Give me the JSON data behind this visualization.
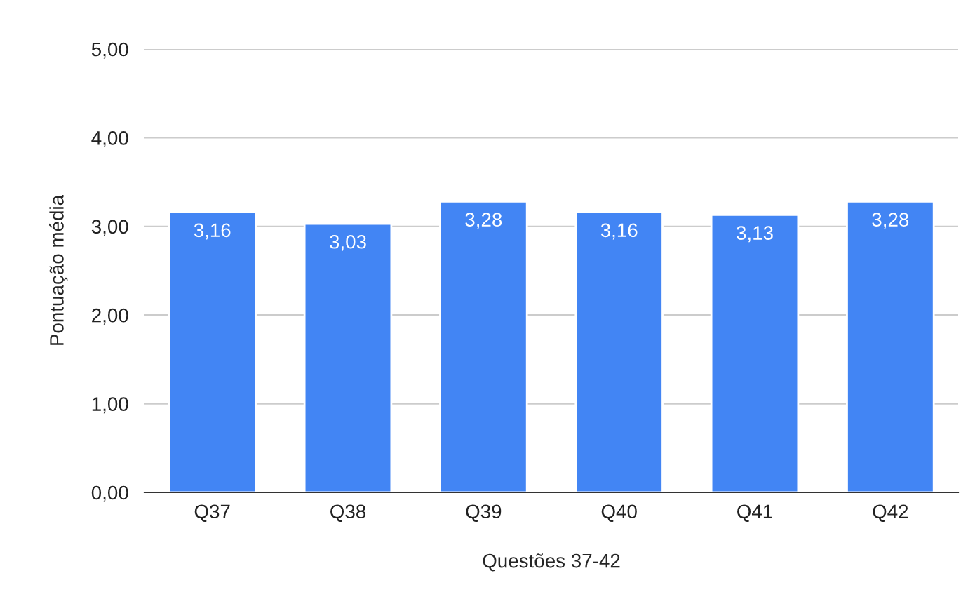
{
  "chart_data": {
    "type": "bar",
    "xlabel": "Questões 37-42",
    "ylabel": "Pontuação média",
    "categories": [
      "Q37",
      "Q38",
      "Q39",
      "Q40",
      "Q41",
      "Q42"
    ],
    "values": [
      3.16,
      3.03,
      3.28,
      3.16,
      3.13,
      3.28
    ],
    "value_labels": [
      "3,16",
      "3,03",
      "3,28",
      "3,16",
      "3,13",
      "3,28"
    ],
    "color": "#4285f4",
    "ylim": [
      0,
      5
    ],
    "yticks": [
      {
        "value": 0,
        "label": "0,00"
      },
      {
        "value": 1,
        "label": "1,00"
      },
      {
        "value": 2,
        "label": "2,00"
      },
      {
        "value": 3,
        "label": "3,00"
      },
      {
        "value": 4,
        "label": "4,00"
      },
      {
        "value": 5,
        "label": "5,00"
      }
    ],
    "grid": "y"
  }
}
